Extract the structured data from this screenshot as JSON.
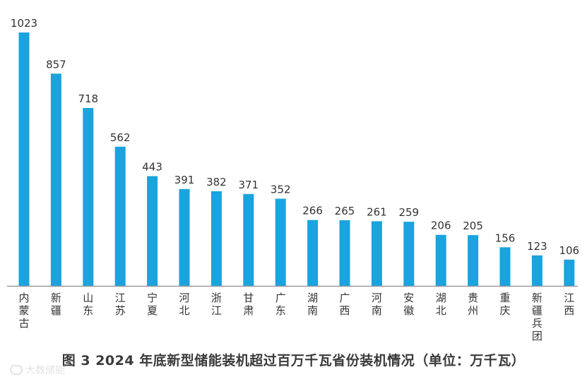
{
  "chart_data": {
    "type": "bar",
    "title": "图 3   2024 年底新型储能装机超过百万千瓦省份装机情况（单位：万千瓦）",
    "categories": [
      [
        "内",
        "蒙",
        "古"
      ],
      [
        "新",
        "疆"
      ],
      [
        "山",
        "东"
      ],
      [
        "江",
        "苏"
      ],
      [
        "宁",
        "夏"
      ],
      [
        "河",
        "北"
      ],
      [
        "浙",
        "江"
      ],
      [
        "甘",
        "肃"
      ],
      [
        "广",
        "东"
      ],
      [
        "湖",
        "南"
      ],
      [
        "广",
        "西"
      ],
      [
        "河",
        "南"
      ],
      [
        "安",
        "徽"
      ],
      [
        "湖",
        "北"
      ],
      [
        "贵",
        "州"
      ],
      [
        "重",
        "庆"
      ],
      [
        "新",
        "疆",
        "兵",
        "团"
      ],
      [
        "江",
        "西"
      ]
    ],
    "values": [
      1023,
      857,
      718,
      562,
      443,
      391,
      382,
      371,
      352,
      266,
      265,
      261,
      259,
      206,
      205,
      156,
      123,
      106
    ],
    "ylim": [
      0,
      1023
    ],
    "grid": false,
    "bar_color": "#1aa3de",
    "axis_color": "#9a9a9a",
    "label_color": "#333333"
  },
  "watermark": {
    "text": "大数储能",
    "icon": "logo-icon"
  }
}
